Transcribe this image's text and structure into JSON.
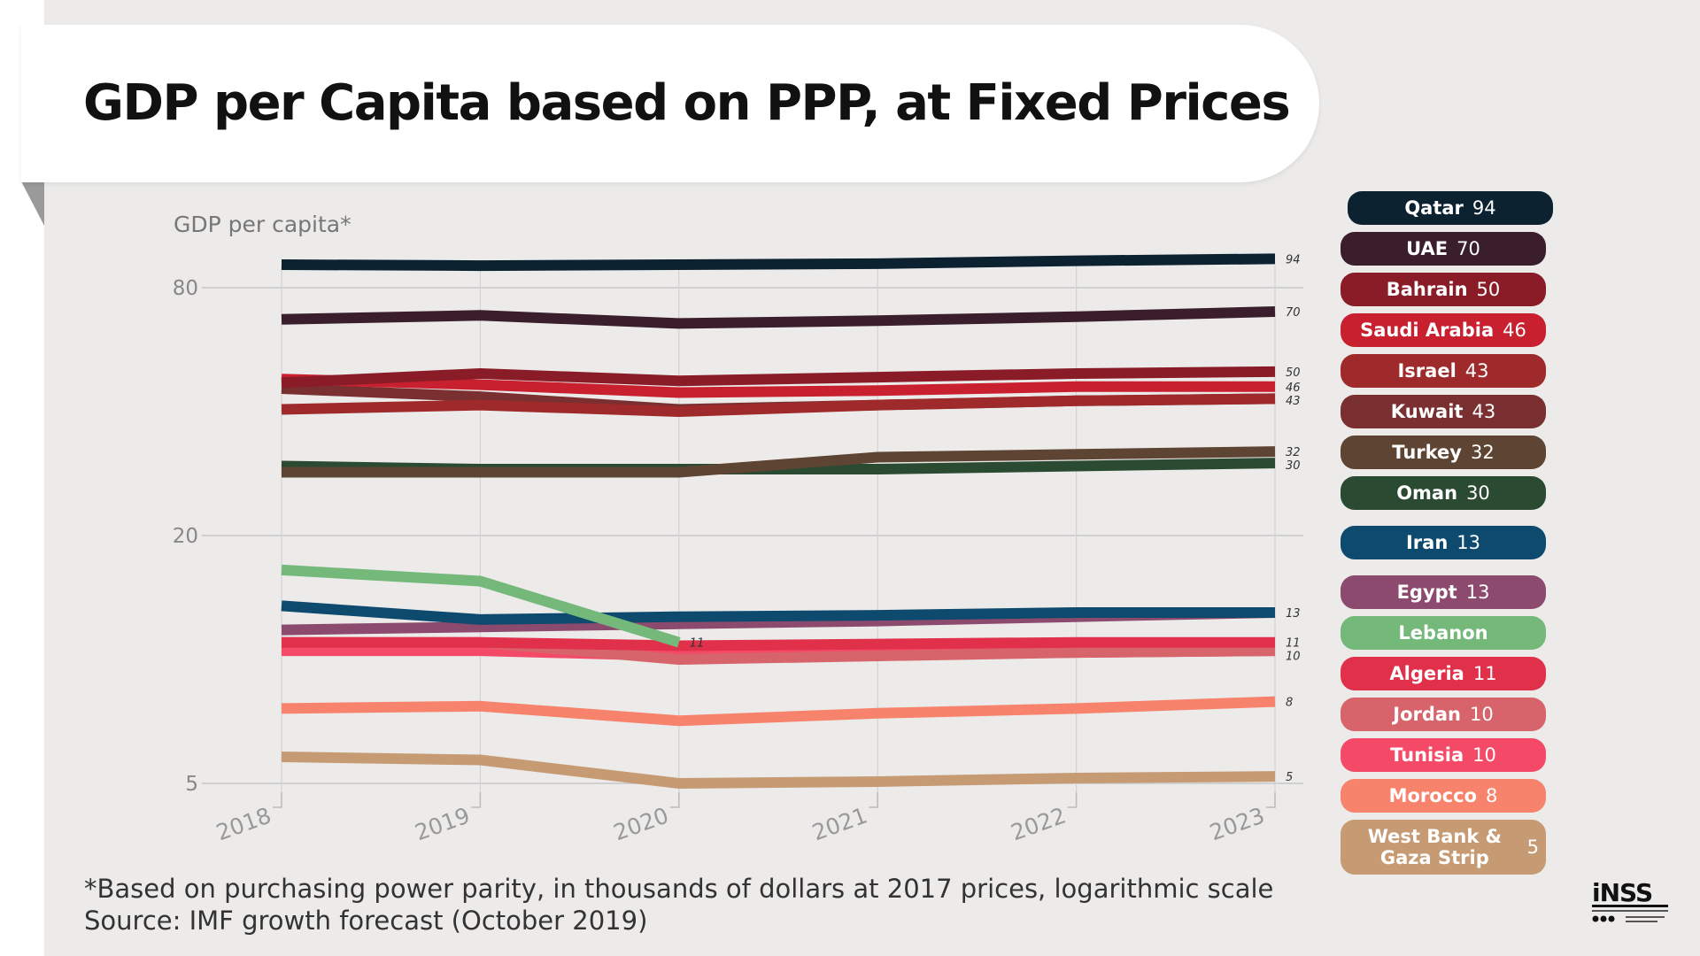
{
  "title": "GDP per Capita based on PPP, at Fixed Prices",
  "footnote": "*Based on purchasing power parity, in thousands of dollars at 2017 prices, logarithmic scale",
  "source": "Source: IMF growth forecast (October 2019)",
  "logo": {
    "text": "iNSS",
    "color": "#111111"
  },
  "chart_data": {
    "type": "line",
    "ylabel": "GDP per capita*",
    "y_scale": "log",
    "x": [
      "2018",
      "2019",
      "2020",
      "2021",
      "2022",
      "2023"
    ],
    "y_ticks": [
      {
        "value": 80,
        "label": "80"
      },
      {
        "value": 20,
        "label": "20"
      },
      {
        "value": 5,
        "label": "5"
      }
    ],
    "ylim": [
      4.8,
      105
    ],
    "grid": true,
    "legend_placement": "right",
    "series": [
      {
        "name": "Qatar",
        "value_label": "94",
        "color": "#0c2231",
        "values": [
          91,
          90.5,
          91,
          91.5,
          93,
          94
        ]
      },
      {
        "name": "UAE",
        "value_label": "70",
        "color": "#3a1e2b",
        "values": [
          67,
          68.5,
          65.5,
          66.5,
          68,
          70
        ]
      },
      {
        "name": "Bahrain",
        "value_label": "50",
        "color": "#8a1c28",
        "values": [
          47,
          49.5,
          47.5,
          48.5,
          49.5,
          50
        ]
      },
      {
        "name": "Saudi Arabia",
        "value_label": "46",
        "color": "#c8202f",
        "values": [
          48,
          46.5,
          44.5,
          45,
          46,
          46
        ]
      },
      {
        "name": "Israel",
        "value_label": "43",
        "color": "#9e2a2b",
        "values": [
          40.5,
          41.5,
          40,
          41.5,
          42.5,
          43
        ]
      },
      {
        "name": "Kuwait",
        "value_label": "43",
        "color": "#7a3030",
        "values": [
          45.5,
          43.5,
          40.5,
          41.5,
          42.5,
          43
        ]
      },
      {
        "name": "Turkey",
        "value_label": "32",
        "color": "#5e4433",
        "values": [
          28.5,
          28.5,
          28.5,
          31,
          31.5,
          32
        ]
      },
      {
        "name": "Oman",
        "value_label": "30",
        "color": "#2b4a32",
        "values": [
          29.5,
          29,
          29,
          29,
          29.5,
          30
        ]
      },
      {
        "name": "Iran",
        "value_label": "13",
        "color": "#0e4a6e",
        "values": [
          13.5,
          12.5,
          12.7,
          12.8,
          13,
          13
        ]
      },
      {
        "name": "Egypt",
        "value_label": "13",
        "color": "#8c4a6e",
        "values": [
          11.8,
          12,
          12.2,
          12.4,
          12.7,
          13
        ]
      },
      {
        "name": "Lebanon",
        "value_label": "",
        "point_label": "11",
        "color": "#74b87a",
        "values": [
          16.5,
          15.5,
          11,
          null,
          null,
          null
        ]
      },
      {
        "name": "Algeria",
        "value_label": "11",
        "color": "#e0304a",
        "values": [
          11,
          11,
          10.8,
          10.9,
          11,
          11
        ]
      },
      {
        "name": "Jordan",
        "value_label": "10",
        "color": "#d8646b",
        "values": [
          11,
          11,
          10,
          10.2,
          10.4,
          10.5
        ]
      },
      {
        "name": "Tunisia",
        "value_label": "10",
        "color": "#f44a68",
        "values": [
          10.5,
          10.5,
          10.2,
          10.3,
          10.4,
          10.5
        ]
      },
      {
        "name": "Morocco",
        "value_label": "8",
        "color": "#f7836c",
        "values": [
          7.6,
          7.7,
          7.1,
          7.4,
          7.6,
          7.9
        ]
      },
      {
        "name": "West Bank & Gaza Strip",
        "value_label": "5",
        "color": "#c69b74",
        "values": [
          5.8,
          5.7,
          5.0,
          5.05,
          5.15,
          5.2
        ]
      }
    ]
  }
}
